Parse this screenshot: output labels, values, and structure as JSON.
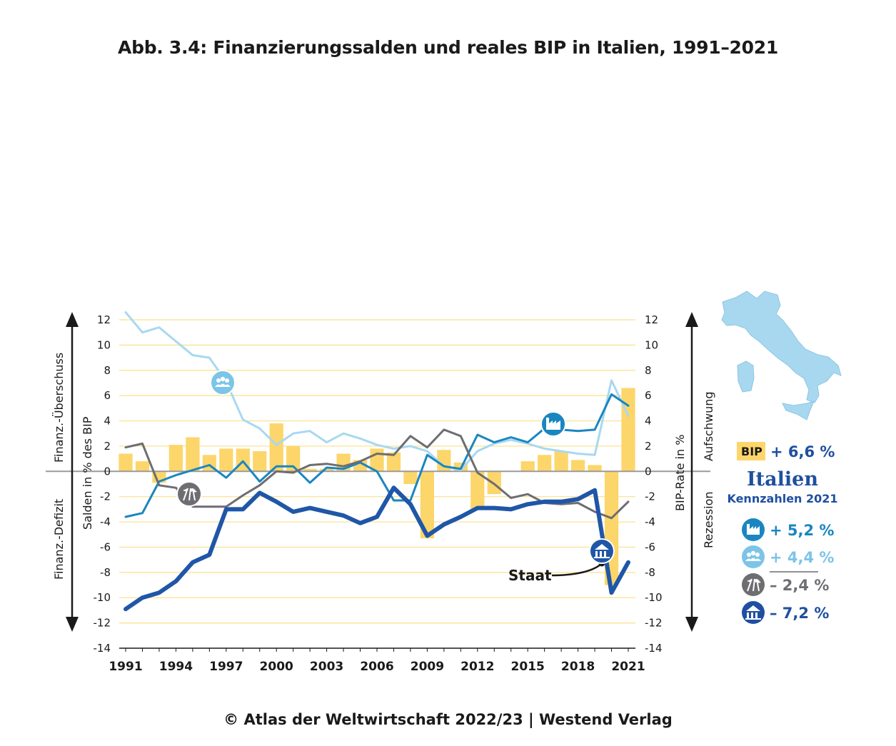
{
  "title": "Abb. 3.4: Finanzierungssalden und reales BIP in Italien, 1991–2021",
  "footer": "© Atlas der Weltwirtschaft 2022/23 | Westend Verlag",
  "side_labels": {
    "left_top": "Finanz.-Überschuss",
    "left_bottom": "Finanz.-Defizit",
    "right_top": "Aufschwung",
    "right_bottom": "Rezession"
  },
  "axis_labels": {
    "left": "Salden in % des BIP",
    "right": "BIP-Rate in %"
  },
  "annotation": "Staat",
  "key_figures": {
    "bip_badge": "BIP",
    "bip_value": "+ 6,6 %",
    "title": "Italien",
    "subtitle": "Kennzahlen 2021",
    "items": [
      {
        "icon": "factory-icon",
        "value": "+ 5,2 %",
        "color": "#1a86c0"
      },
      {
        "icon": "households-icon",
        "value": "+ 4,4 %",
        "color": "#7cc4e8"
      },
      {
        "icon": "abroad-icon",
        "value": "– 2,4 %",
        "color": "#6d6d72"
      },
      {
        "icon": "government-icon",
        "value": "– 7,2 %",
        "color": "#1f4fa0"
      }
    ]
  },
  "colors": {
    "bip": "#fcd66a",
    "corporations": "#1a86c0",
    "households": "#a8d8f0",
    "abroad": "#6d6d72",
    "government": "#1f56a8",
    "grid": "#fbe08a",
    "map": "#a8d8f0"
  },
  "chart_data": {
    "type": "bar+line",
    "title": "Abb. 3.4: Finanzierungssalden und reales BIP in Italien, 1991–2021",
    "xlabel": "",
    "ylabel": "Salden in % des BIP",
    "y2label": "BIP-Rate in %",
    "ylim": [
      -14,
      12
    ],
    "yticks": [
      12,
      10,
      8,
      6,
      4,
      2,
      0,
      -2,
      -4,
      -6,
      -8,
      -10,
      -12,
      -14
    ],
    "xtick_labels": [
      "1991",
      "1994",
      "1997",
      "2000",
      "2003",
      "2006",
      "2009",
      "2012",
      "2015",
      "2018",
      "2021"
    ],
    "x": [
      1991,
      1992,
      1993,
      1994,
      1995,
      1996,
      1997,
      1998,
      1999,
      2000,
      2001,
      2002,
      2003,
      2004,
      2005,
      2006,
      2007,
      2008,
      2009,
      2010,
      2011,
      2012,
      2013,
      2014,
      2015,
      2016,
      2017,
      2018,
      2019,
      2020,
      2021
    ],
    "bars": {
      "name": "BIP",
      "values": [
        1.4,
        0.8,
        -0.9,
        2.1,
        2.7,
        1.3,
        1.8,
        1.8,
        1.6,
        3.8,
        2.0,
        0.2,
        0.2,
        1.4,
        0.9,
        1.8,
        1.5,
        -1.0,
        -5.3,
        1.7,
        0.7,
        -3.0,
        -1.8,
        0.0,
        0.8,
        1.3,
        1.6,
        0.9,
        0.5,
        -9.0,
        6.6
      ]
    },
    "series": [
      {
        "key": "households",
        "values": [
          12.6,
          11.0,
          11.4,
          10.3,
          9.2,
          9.0,
          7.1,
          4.1,
          3.4,
          2.1,
          3.0,
          3.2,
          2.3,
          3.0,
          2.6,
          2.1,
          1.8,
          2.0,
          1.6,
          0.4,
          0.1,
          1.6,
          2.2,
          2.5,
          2.2,
          1.8,
          1.6,
          1.4,
          1.3,
          7.2,
          4.4
        ]
      },
      {
        "key": "corporations",
        "values": [
          -3.6,
          -3.3,
          -0.8,
          -0.3,
          0.1,
          0.5,
          -0.5,
          0.8,
          -0.8,
          0.4,
          0.4,
          -0.9,
          0.3,
          0.2,
          0.7,
          0.0,
          -2.3,
          -2.3,
          1.3,
          0.4,
          0.2,
          2.9,
          2.3,
          2.7,
          2.3,
          3.4,
          3.3,
          3.2,
          3.3,
          6.1,
          5.2
        ]
      },
      {
        "key": "abroad",
        "values": [
          1.9,
          2.2,
          -1.1,
          -1.3,
          -2.8,
          -2.8,
          -2.8,
          -1.9,
          -1.1,
          0.0,
          -0.1,
          0.5,
          0.6,
          0.4,
          0.8,
          1.4,
          1.3,
          2.8,
          1.9,
          3.3,
          2.8,
          -0.1,
          -1.0,
          -2.1,
          -1.8,
          -2.5,
          -2.6,
          -2.5,
          -3.2,
          -3.7,
          -2.4
        ]
      },
      {
        "key": "government",
        "values": [
          -10.9,
          -10.0,
          -9.6,
          -8.7,
          -7.2,
          -6.6,
          -3.0,
          -3.0,
          -1.7,
          -2.4,
          -3.2,
          -2.9,
          -3.2,
          -3.5,
          -4.1,
          -3.6,
          -1.3,
          -2.6,
          -5.1,
          -4.2,
          -3.6,
          -2.9,
          -2.9,
          -3.0,
          -2.6,
          -2.4,
          -2.4,
          -2.2,
          -1.5,
          -9.6,
          -7.2
        ]
      }
    ]
  }
}
